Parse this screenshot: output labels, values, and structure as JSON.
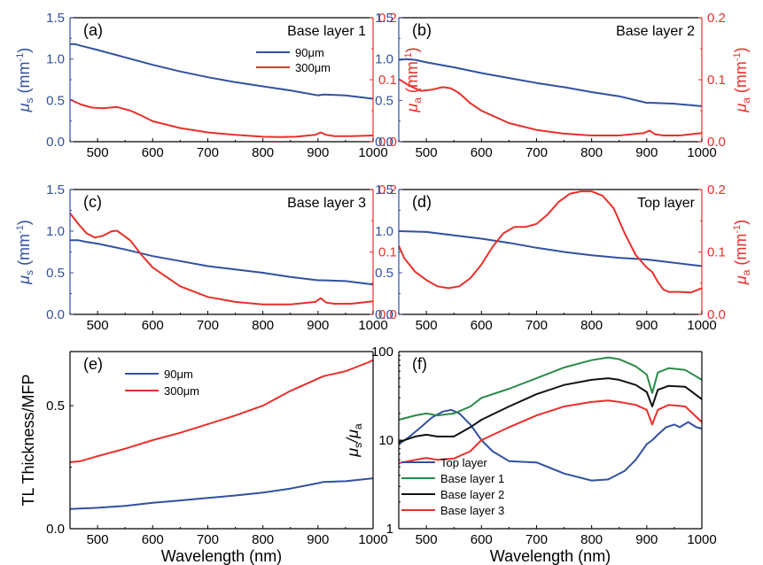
{
  "colors": {
    "blue": "#3150a0",
    "red": "#e8302a",
    "green": "#2a8a4a",
    "black": "#111111",
    "axis": "#000000"
  },
  "chart_data": [
    {
      "id": "a",
      "type": "line",
      "panel_label": "(a)",
      "annotation": "Base layer 1",
      "x_tick_labels": [
        "500",
        "600",
        "700",
        "800",
        "900",
        "1000"
      ],
      "xlabel": "",
      "ylabel_main": "μ",
      "ylabel_sub": "s",
      "ylabel_unit": " (mm",
      "ylabel_exp": "-1",
      "ylabel_close": ")",
      "y2label_main": "μ",
      "y2label_sub": "a",
      "y2label_unit": " (mm",
      "y2label_exp": "-1",
      "y2label_close": ")",
      "xlim": [
        450,
        1000
      ],
      "ylim": [
        0,
        1.5
      ],
      "y2lim": [
        0,
        0.2
      ],
      "yticks": [
        "0.0",
        "0.5",
        "1.0",
        "1.5"
      ],
      "y2ticks": [
        "0.0",
        "0.1",
        "0.2"
      ],
      "legend": {
        "position": "top-right",
        "entries": [
          {
            "label": "90μm",
            "color": "blue"
          },
          {
            "label": "300μm",
            "color": "red"
          }
        ]
      },
      "series": [
        {
          "axis": "left",
          "color": "blue",
          "x": [
            450,
            460,
            470,
            500,
            550,
            600,
            650,
            700,
            750,
            800,
            850,
            900,
            910,
            950,
            1000
          ],
          "y": [
            1.18,
            1.18,
            1.16,
            1.11,
            1.02,
            0.93,
            0.85,
            0.78,
            0.72,
            0.67,
            0.62,
            0.56,
            0.57,
            0.56,
            0.52
          ]
        },
        {
          "axis": "right",
          "color": "red",
          "x": [
            450,
            470,
            490,
            510,
            535,
            560,
            580,
            600,
            650,
            700,
            750,
            800,
            830,
            860,
            895,
            905,
            915,
            930,
            960,
            1000
          ],
          "y": [
            0.068,
            0.06,
            0.055,
            0.054,
            0.056,
            0.05,
            0.042,
            0.033,
            0.022,
            0.015,
            0.011,
            0.008,
            0.0075,
            0.008,
            0.011,
            0.015,
            0.011,
            0.009,
            0.009,
            0.01
          ]
        }
      ]
    },
    {
      "id": "b",
      "type": "line",
      "panel_label": "(b)",
      "annotation": "Base layer 2",
      "x_tick_labels": [
        "500",
        "600",
        "700",
        "800",
        "900",
        "1000"
      ],
      "xlabel": "",
      "ylabel_main": "",
      "ylabel_sub": "",
      "ylabel_unit": "",
      "ylabel_exp": "",
      "ylabel_close": "",
      "y2label_main": "μ",
      "y2label_sub": "a",
      "y2label_unit": " (mm",
      "y2label_exp": "-1",
      "y2label_close": ")",
      "xlim": [
        450,
        1000
      ],
      "ylim": [
        0,
        1.5
      ],
      "y2lim": [
        0,
        0.2
      ],
      "yticks": [
        "0.0",
        "0.5",
        "1.0",
        "1.5"
      ],
      "y2ticks": [
        "0.0",
        "0.1",
        "0.2"
      ],
      "legend": null,
      "series": [
        {
          "axis": "left",
          "color": "blue",
          "x": [
            450,
            465,
            480,
            500,
            550,
            600,
            650,
            700,
            750,
            800,
            850,
            900,
            910,
            950,
            1000
          ],
          "y": [
            0.99,
            1.0,
            0.99,
            0.96,
            0.9,
            0.83,
            0.77,
            0.71,
            0.66,
            0.6,
            0.55,
            0.47,
            0.47,
            0.46,
            0.43
          ]
        },
        {
          "axis": "right",
          "color": "red",
          "x": [
            450,
            470,
            490,
            510,
            530,
            545,
            560,
            580,
            600,
            650,
            700,
            750,
            800,
            850,
            895,
            905,
            915,
            930,
            960,
            1000
          ],
          "y": [
            0.101,
            0.09,
            0.082,
            0.084,
            0.088,
            0.086,
            0.078,
            0.062,
            0.05,
            0.03,
            0.019,
            0.013,
            0.01,
            0.01,
            0.014,
            0.018,
            0.012,
            0.01,
            0.01,
            0.014
          ]
        }
      ]
    },
    {
      "id": "c",
      "type": "line",
      "panel_label": "(c)",
      "annotation": "Base layer 3",
      "x_tick_labels": [
        "500",
        "600",
        "700",
        "800",
        "900",
        "1000"
      ],
      "xlabel": "",
      "ylabel_main": "μ",
      "ylabel_sub": "s",
      "ylabel_unit": " (mm",
      "ylabel_exp": "-1",
      "ylabel_close": ")",
      "y2label_main": "",
      "y2label_sub": "",
      "y2label_unit": "",
      "y2label_exp": "",
      "y2label_close": "",
      "xlim": [
        450,
        1000
      ],
      "ylim": [
        0,
        1.5
      ],
      "y2lim": [
        0,
        0.2
      ],
      "yticks": [
        "0.0",
        "0.5",
        "1.0",
        "1.5"
      ],
      "y2ticks": [
        "0.0",
        "0.1",
        "0.2"
      ],
      "legend": null,
      "series": [
        {
          "axis": "left",
          "color": "blue",
          "x": [
            450,
            465,
            480,
            500,
            550,
            600,
            650,
            700,
            750,
            800,
            850,
            900,
            910,
            950,
            1000
          ],
          "y": [
            0.89,
            0.89,
            0.87,
            0.85,
            0.78,
            0.7,
            0.64,
            0.58,
            0.54,
            0.5,
            0.45,
            0.41,
            0.41,
            0.4,
            0.36
          ]
        },
        {
          "axis": "right",
          "color": "red",
          "x": [
            450,
            465,
            480,
            495,
            510,
            525,
            535,
            545,
            560,
            580,
            600,
            650,
            700,
            750,
            800,
            850,
            895,
            905,
            915,
            930,
            960,
            1000
          ],
          "y": [
            0.162,
            0.145,
            0.13,
            0.123,
            0.126,
            0.133,
            0.134,
            0.128,
            0.118,
            0.095,
            0.075,
            0.045,
            0.028,
            0.02,
            0.016,
            0.016,
            0.02,
            0.026,
            0.019,
            0.017,
            0.017,
            0.021
          ]
        }
      ]
    },
    {
      "id": "d",
      "type": "line",
      "panel_label": "(d)",
      "annotation": "Top layer",
      "x_tick_labels": [
        "500",
        "600",
        "700",
        "800",
        "900",
        "1000"
      ],
      "xlabel": "",
      "ylabel_main": "",
      "ylabel_sub": "",
      "ylabel_unit": "",
      "ylabel_exp": "",
      "ylabel_close": "",
      "y2label_main": "μ",
      "y2label_sub": "a",
      "y2label_unit": " (mm",
      "y2label_exp": "-1",
      "y2label_close": ")",
      "xlim": [
        450,
        1000
      ],
      "ylim": [
        0,
        1.5
      ],
      "y2lim": [
        0,
        0.2
      ],
      "yticks": [
        "0.0",
        "0.5",
        "1.0",
        "1.5"
      ],
      "y2ticks": [
        "0.0",
        "0.1",
        "0.2"
      ],
      "legend": null,
      "series": [
        {
          "axis": "left",
          "color": "blue",
          "x": [
            450,
            500,
            550,
            600,
            650,
            700,
            750,
            800,
            850,
            900,
            950,
            1000
          ],
          "y": [
            1.0,
            0.99,
            0.95,
            0.91,
            0.86,
            0.8,
            0.75,
            0.71,
            0.68,
            0.66,
            0.62,
            0.58
          ]
        },
        {
          "axis": "right",
          "color": "red",
          "x": [
            450,
            460,
            480,
            500,
            520,
            540,
            560,
            580,
            600,
            620,
            640,
            660,
            680,
            700,
            720,
            740,
            760,
            780,
            800,
            820,
            840,
            860,
            880,
            900,
            910,
            920,
            930,
            940,
            960,
            980,
            1000
          ],
          "y": [
            0.11,
            0.09,
            0.068,
            0.055,
            0.045,
            0.042,
            0.045,
            0.058,
            0.08,
            0.108,
            0.13,
            0.14,
            0.14,
            0.145,
            0.16,
            0.18,
            0.193,
            0.197,
            0.197,
            0.19,
            0.17,
            0.13,
            0.095,
            0.075,
            0.068,
            0.052,
            0.04,
            0.036,
            0.036,
            0.035,
            0.042
          ]
        }
      ]
    },
    {
      "id": "e",
      "type": "line",
      "panel_label": "(e)",
      "annotation": "",
      "x_tick_labels": [
        "500",
        "600",
        "700",
        "800",
        "900",
        "1000"
      ],
      "xlabel": "Wavelength (nm)",
      "ylabel_main": "TL Thickness/MFP",
      "xlim": [
        450,
        1000
      ],
      "ylim": [
        0,
        0.72
      ],
      "yticks": [
        "0.0",
        "0.5"
      ],
      "ytick_values": [
        0,
        0.5
      ],
      "legend": {
        "position": "top-left",
        "entries": [
          {
            "label": "90μm",
            "color": "blue"
          },
          {
            "label": "300μm",
            "color": "red"
          }
        ]
      },
      "series": [
        {
          "axis": "left",
          "color": "blue",
          "x": [
            450,
            500,
            550,
            600,
            650,
            700,
            750,
            800,
            850,
            900,
            910,
            950,
            1000
          ],
          "y": [
            0.08,
            0.085,
            0.093,
            0.105,
            0.115,
            0.125,
            0.135,
            0.147,
            0.163,
            0.185,
            0.19,
            0.193,
            0.205
          ]
        },
        {
          "axis": "left",
          "color": "red",
          "x": [
            450,
            470,
            500,
            550,
            600,
            650,
            700,
            750,
            800,
            850,
            900,
            910,
            950,
            990,
            1000
          ],
          "y": [
            0.27,
            0.275,
            0.295,
            0.325,
            0.36,
            0.39,
            0.425,
            0.46,
            0.5,
            0.56,
            0.61,
            0.62,
            0.64,
            0.675,
            0.685
          ]
        }
      ]
    },
    {
      "id": "f",
      "type": "line",
      "panel_label": "(f)",
      "annotation": "",
      "x_tick_labels": [
        "500",
        "600",
        "700",
        "800",
        "900",
        "1000"
      ],
      "xlabel": "Wavelength (nm)",
      "ylabel_main": "μ",
      "ylabel_sub": "s",
      "ylabel_slash": "/μ",
      "ylabel_sub2": "a",
      "xlim": [
        450,
        1000
      ],
      "ylim": [
        1,
        100
      ],
      "yscale": "log",
      "yticks": [
        "1",
        "10",
        "100"
      ],
      "ytick_values": [
        1,
        10,
        100
      ],
      "legend": {
        "position": "bottom-left",
        "entries": [
          {
            "label": "Top layer",
            "color": "blue"
          },
          {
            "label": "Base layer 1",
            "color": "green"
          },
          {
            "label": "Base layer 2",
            "color": "black"
          },
          {
            "label": "Base layer 3",
            "color": "red"
          }
        ]
      },
      "series": [
        {
          "color": "blue",
          "x": [
            450,
            470,
            490,
            510,
            530,
            545,
            560,
            580,
            600,
            620,
            650,
            700,
            750,
            800,
            830,
            860,
            880,
            900,
            910,
            920,
            935,
            950,
            960,
            975,
            990,
            1000
          ],
          "y": [
            9,
            11,
            14,
            18,
            21,
            22,
            20,
            15,
            10,
            7.5,
            5.8,
            5.6,
            4.2,
            3.5,
            3.6,
            4.5,
            6,
            9,
            10,
            11.5,
            14,
            15,
            14,
            16,
            14,
            13.5
          ]
        },
        {
          "color": "green",
          "x": [
            450,
            480,
            500,
            520,
            550,
            580,
            600,
            650,
            700,
            750,
            800,
            830,
            850,
            880,
            900,
            910,
            920,
            940,
            970,
            1000
          ],
          "y": [
            17,
            19,
            20,
            19,
            20,
            24,
            30,
            38,
            50,
            66,
            80,
            86,
            82,
            68,
            55,
            34,
            58,
            65,
            62,
            48
          ]
        },
        {
          "color": "black",
          "x": [
            450,
            480,
            500,
            520,
            550,
            580,
            600,
            650,
            700,
            750,
            800,
            830,
            850,
            880,
            900,
            910,
            920,
            940,
            970,
            1000
          ],
          "y": [
            9.5,
            11,
            11.5,
            11,
            11,
            14,
            17,
            24,
            33,
            42,
            48,
            50,
            48,
            42,
            35,
            24,
            37,
            41,
            40,
            29
          ]
        },
        {
          "color": "red",
          "x": [
            450,
            480,
            500,
            520,
            550,
            580,
            600,
            650,
            700,
            750,
            800,
            830,
            850,
            880,
            900,
            910,
            920,
            940,
            970,
            1000
          ],
          "y": [
            5.5,
            6,
            6.3,
            6,
            6.2,
            7.5,
            10,
            14,
            19,
            24,
            27,
            28,
            27,
            25,
            22,
            15,
            22,
            25,
            24,
            16
          ]
        }
      ]
    }
  ]
}
